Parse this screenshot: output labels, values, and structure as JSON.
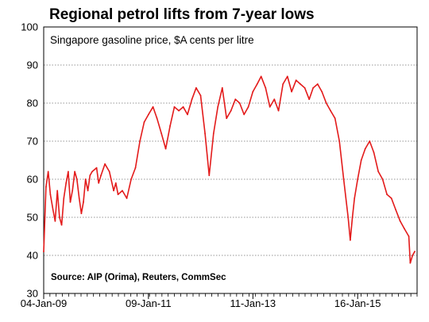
{
  "chart_data": {
    "type": "line",
    "title": "Regional petrol lifts from 7-year lows",
    "subtitle": "Singapore gasoline price, $A cents per litre",
    "source": "Source: AIP (Orima), Reuters, CommSec",
    "xlabel": "",
    "ylabel": "",
    "ylim": [
      30,
      100
    ],
    "yticks": [
      30,
      40,
      50,
      60,
      70,
      80,
      90,
      100
    ],
    "xticks": [
      "04-Jan-09",
      "09-Jan-11",
      "11-Jan-13",
      "16-Jan-15"
    ],
    "grid": true,
    "series_color": "#e31b1b",
    "series": [
      {
        "x": [
          "2009-01-04",
          "2009-01-20",
          "2009-02-05",
          "2009-02-20",
          "2009-03-10",
          "2009-03-25",
          "2009-04-10",
          "2009-04-25",
          "2009-05-10",
          "2009-05-25",
          "2009-06-10",
          "2009-06-25",
          "2009-07-10",
          "2009-07-25",
          "2009-08-10",
          "2009-08-25",
          "2009-09-10",
          "2009-09-25",
          "2009-10-10",
          "2009-10-25",
          "2009-11-10",
          "2009-11-25",
          "2009-12-10",
          "2010-01-10",
          "2010-01-25",
          "2010-02-10",
          "2010-03-10",
          "2010-04-10",
          "2010-05-10",
          "2010-05-25",
          "2010-06-10",
          "2010-07-10",
          "2010-08-10",
          "2010-09-10",
          "2010-10-10",
          "2010-11-10",
          "2010-12-10",
          "2011-01-09",
          "2011-02-10",
          "2011-03-10",
          "2011-04-10",
          "2011-05-10",
          "2011-06-10",
          "2011-07-10",
          "2011-08-10",
          "2011-09-10",
          "2011-10-10",
          "2011-11-10",
          "2011-12-10",
          "2012-01-10",
          "2012-02-10",
          "2012-03-10",
          "2012-04-10",
          "2012-05-10",
          "2012-06-10",
          "2012-06-25",
          "2012-07-10",
          "2012-08-10",
          "2012-09-10",
          "2012-10-10",
          "2012-11-10",
          "2012-12-10",
          "2013-01-11",
          "2013-02-10",
          "2013-03-10",
          "2013-04-10",
          "2013-05-10",
          "2013-06-10",
          "2013-07-10",
          "2013-08-10",
          "2013-09-10",
          "2013-10-10",
          "2013-11-10",
          "2013-12-10",
          "2014-01-10",
          "2014-02-10",
          "2014-03-10",
          "2014-04-10",
          "2014-05-10",
          "2014-06-10",
          "2014-07-10",
          "2014-08-10",
          "2014-09-10",
          "2014-10-10",
          "2014-11-10",
          "2014-11-25",
          "2014-12-10",
          "2014-12-25",
          "2015-01-16",
          "2015-02-10",
          "2015-03-10",
          "2015-04-10",
          "2015-05-10",
          "2015-06-10",
          "2015-07-10",
          "2015-08-10",
          "2015-09-10",
          "2015-10-10",
          "2015-11-10",
          "2015-12-10",
          "2016-01-10",
          "2016-01-20",
          "2016-02-05",
          "2016-02-20"
        ],
        "values": [
          41,
          58,
          62,
          56,
          52,
          49,
          57,
          50,
          48,
          55,
          59,
          62,
          54,
          57,
          62,
          60,
          55,
          51,
          54,
          60,
          57,
          61,
          62,
          63,
          59,
          61,
          64,
          62,
          57,
          59,
          56,
          57,
          55,
          60,
          63,
          70,
          75,
          77,
          79,
          76,
          72,
          68,
          74,
          79,
          78,
          79,
          77,
          81,
          84,
          82,
          72,
          61,
          72,
          79,
          84,
          80,
          76,
          78,
          81,
          80,
          77,
          79,
          83,
          85,
          87,
          84,
          79,
          81,
          78,
          85,
          87,
          83,
          86,
          85,
          84,
          81,
          84,
          85,
          83,
          80,
          78,
          76,
          70,
          60,
          50,
          44,
          50,
          55,
          60,
          65,
          68,
          70,
          67,
          62,
          60,
          56,
          55,
          52,
          49,
          47,
          45,
          38,
          40,
          41
        ]
      }
    ]
  }
}
